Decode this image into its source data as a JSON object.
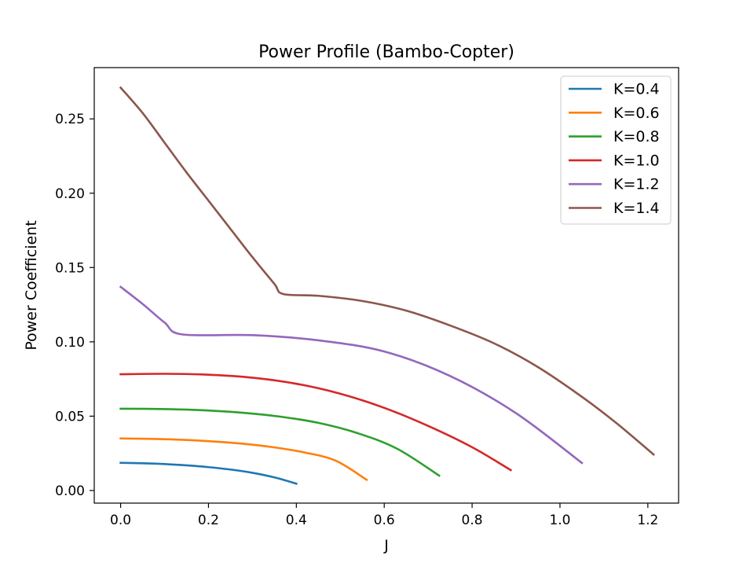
{
  "chart_data": {
    "type": "line",
    "title": "Power Profile (Bambo-Copter)",
    "xlabel": "J",
    "ylabel": "Power Coefficient",
    "xlim": [
      -0.06,
      1.27
    ],
    "ylim": [
      -0.0085,
      0.2845
    ],
    "xticks": [
      {
        "value": 0.0,
        "label": "0.0"
      },
      {
        "value": 0.2,
        "label": "0.2"
      },
      {
        "value": 0.4,
        "label": "0.4"
      },
      {
        "value": 0.6,
        "label": "0.6"
      },
      {
        "value": 0.8,
        "label": "0.8"
      },
      {
        "value": 1.0,
        "label": "1.0"
      },
      {
        "value": 1.2,
        "label": "1.2"
      }
    ],
    "yticks": [
      {
        "value": 0.0,
        "label": "0.00"
      },
      {
        "value": 0.05,
        "label": "0.05"
      },
      {
        "value": 0.1,
        "label": "0.10"
      },
      {
        "value": 0.15,
        "label": "0.15"
      },
      {
        "value": 0.2,
        "label": "0.20"
      },
      {
        "value": 0.25,
        "label": "0.25"
      }
    ],
    "grid": false,
    "legend_position": "upper right",
    "series": [
      {
        "name": "K=0.4",
        "color": "#1f77b4",
        "x": [
          0.0,
          0.05,
          0.1,
          0.15,
          0.2,
          0.25,
          0.3,
          0.35,
          0.4
        ],
        "y": [
          0.0186,
          0.0183,
          0.0178,
          0.0169,
          0.0157,
          0.0141,
          0.0119,
          0.0088,
          0.0046
        ]
      },
      {
        "name": "K=0.6",
        "color": "#ff7f0e",
        "x": [
          0.0,
          0.07,
          0.14,
          0.21,
          0.28,
          0.35,
          0.42,
          0.49,
          0.56
        ],
        "y": [
          0.035,
          0.0347,
          0.0341,
          0.033,
          0.0314,
          0.029,
          0.0255,
          0.02,
          0.0072
        ]
      },
      {
        "name": "K=0.8",
        "color": "#2ca02c",
        "x": [
          0.0,
          0.09,
          0.18,
          0.27,
          0.36,
          0.45,
          0.54,
          0.63,
          0.725
        ],
        "y": [
          0.055,
          0.0548,
          0.0541,
          0.0525,
          0.0498,
          0.0455,
          0.0385,
          0.028,
          0.01
        ]
      },
      {
        "name": "K=1.0",
        "color": "#d62728",
        "x": [
          0.0,
          0.1,
          0.2,
          0.3,
          0.4,
          0.5,
          0.6,
          0.7,
          0.8,
          0.888
        ],
        "y": [
          0.0782,
          0.0785,
          0.0779,
          0.0759,
          0.0718,
          0.0651,
          0.0556,
          0.0434,
          0.0291,
          0.0137
        ]
      },
      {
        "name": "K=1.2",
        "color": "#9467bd",
        "x": [
          0.0,
          0.05,
          0.1,
          0.14,
          0.3,
          0.45,
          0.6,
          0.75,
          0.9,
          1.05
        ],
        "y": [
          0.137,
          0.1255,
          0.113,
          0.105,
          0.1045,
          0.101,
          0.0935,
          0.077,
          0.052,
          0.0185
        ]
      },
      {
        "name": "K=1.4",
        "color": "#8c564b",
        "x": [
          0.0,
          0.05,
          0.1,
          0.15,
          0.2,
          0.25,
          0.3,
          0.35,
          0.37,
          0.45,
          0.55,
          0.65,
          0.75,
          0.85,
          0.95,
          1.05,
          1.13,
          1.213
        ],
        "y": [
          0.271,
          0.254,
          0.234,
          0.214,
          0.195,
          0.176,
          0.157,
          0.139,
          0.1322,
          0.131,
          0.1275,
          0.121,
          0.111,
          0.099,
          0.083,
          0.063,
          0.045,
          0.0242
        ]
      }
    ]
  }
}
